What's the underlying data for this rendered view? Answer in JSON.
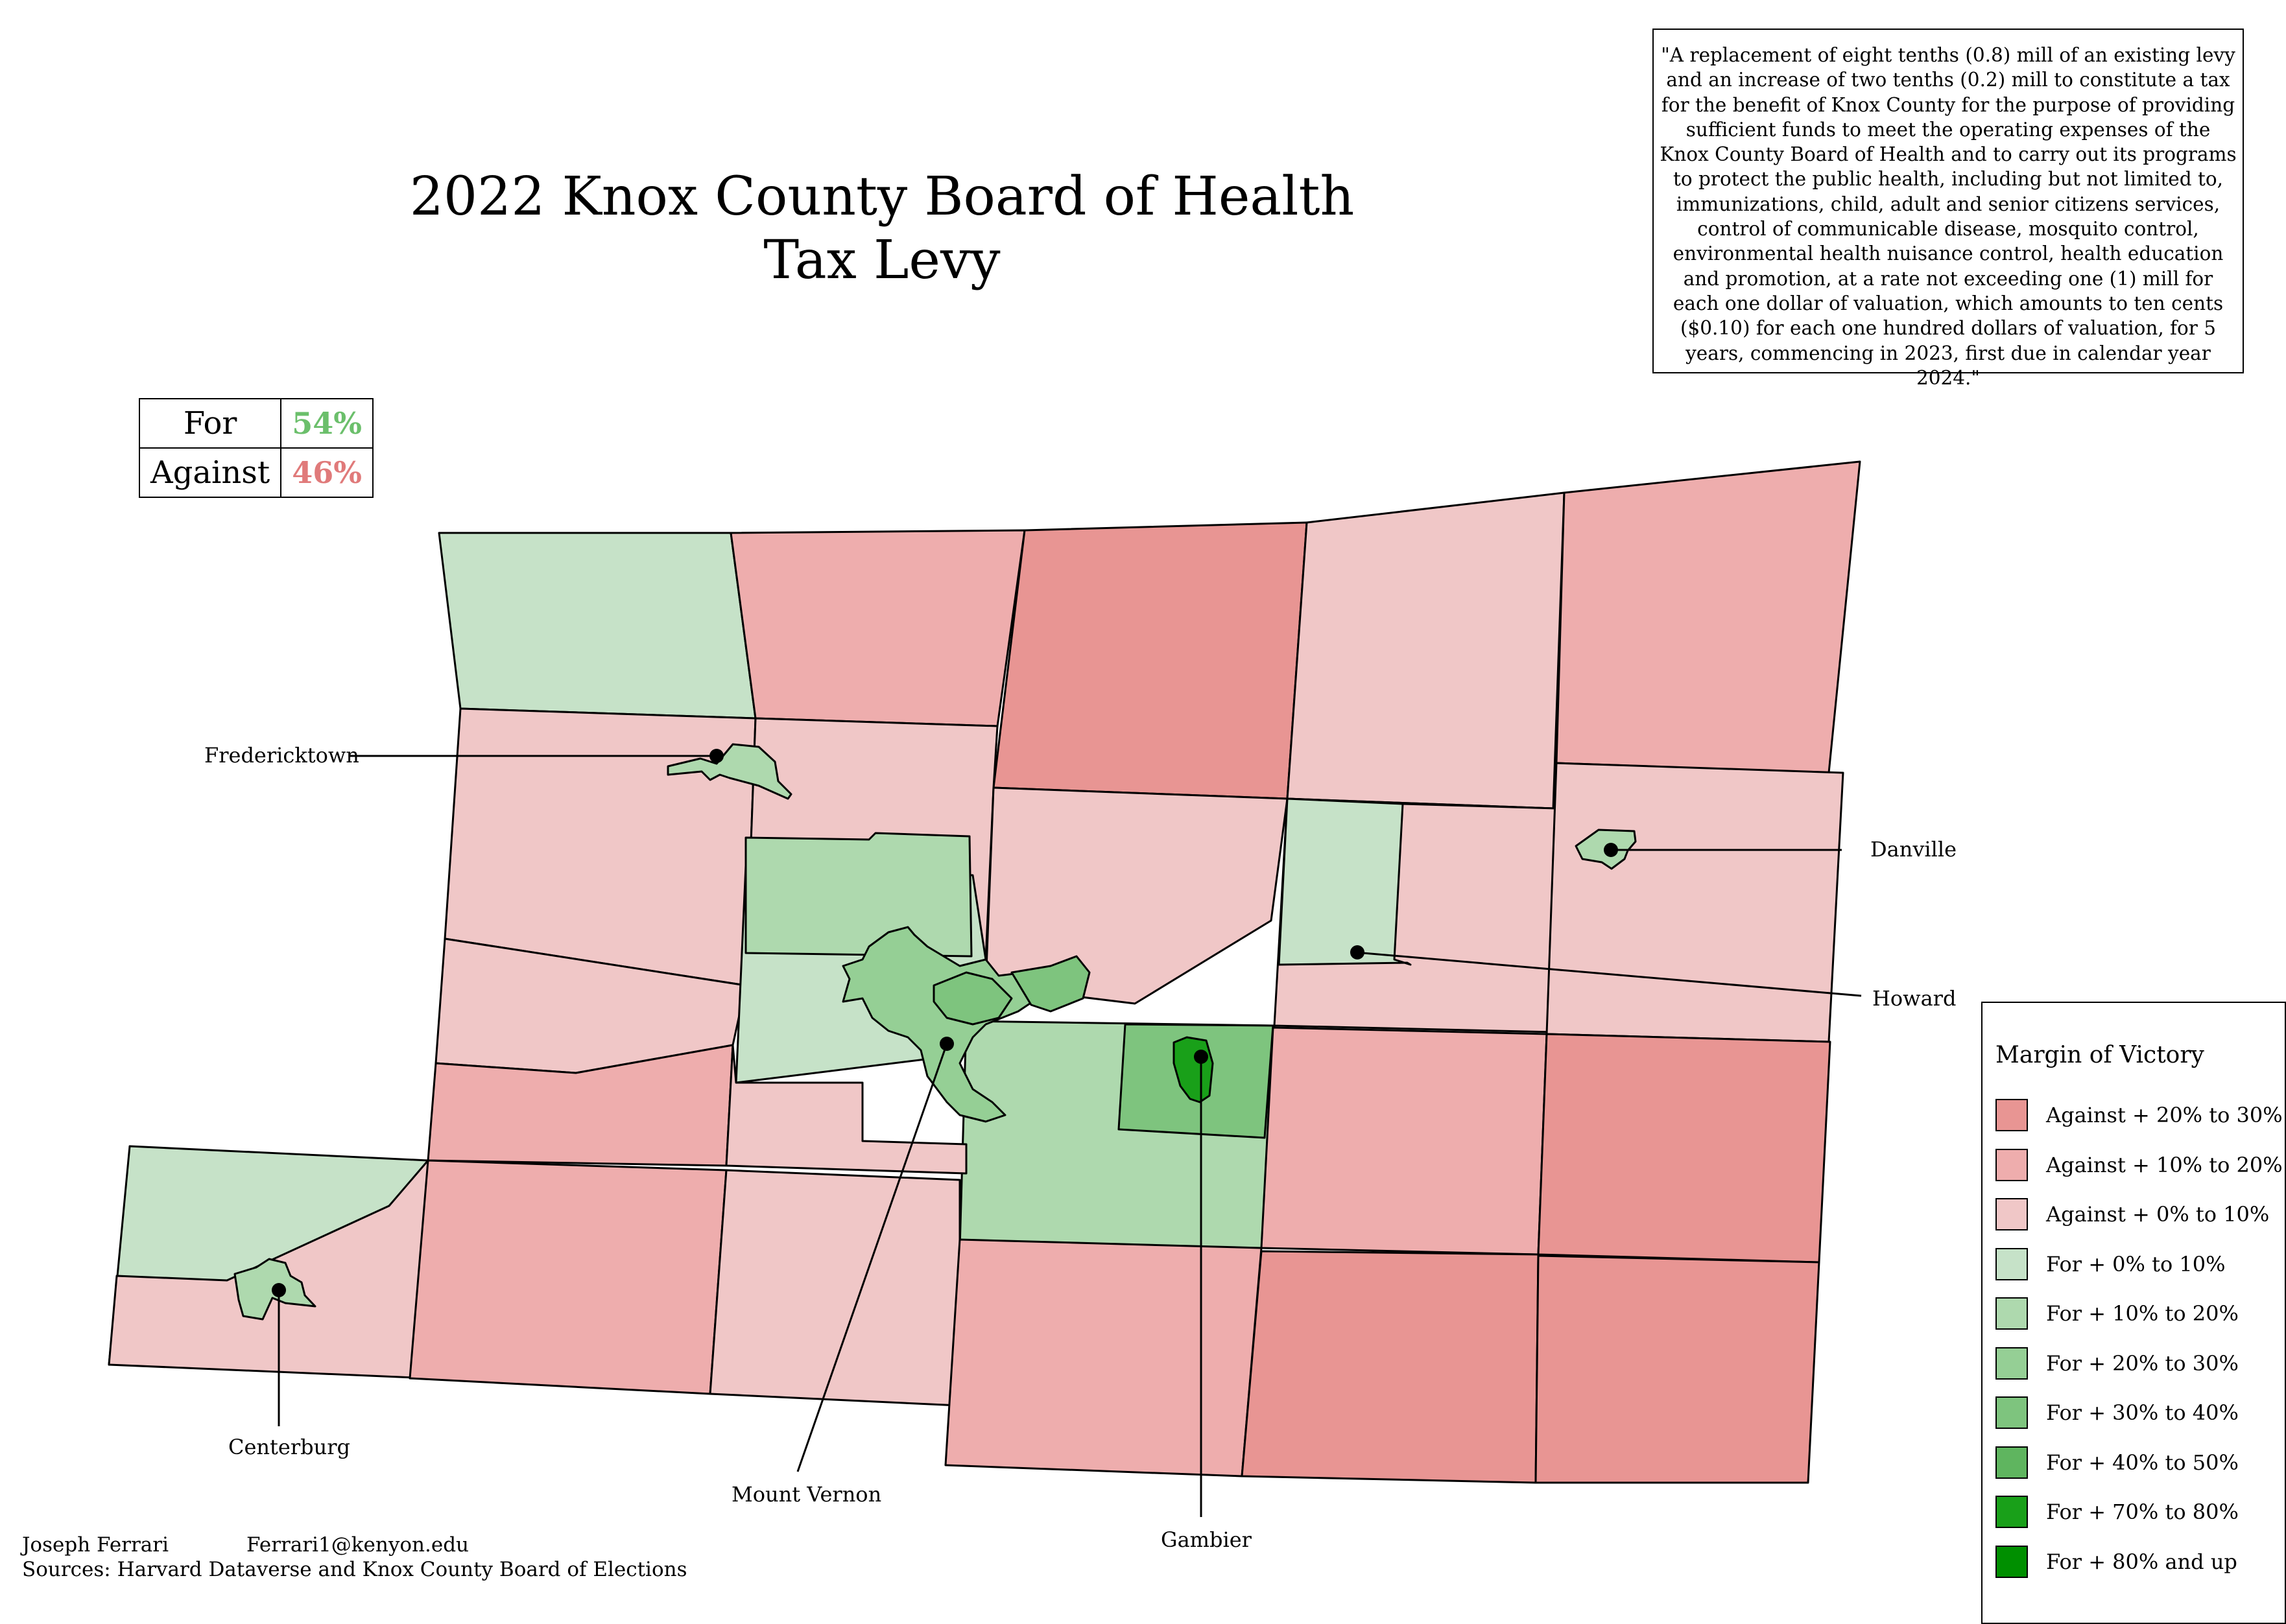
{
  "title_line1": "2022 Knox County Board of Health",
  "title_line2": "Tax Levy",
  "ballot_text": "\"A replacement of eight tenths (0.8) mill of an existing levy and an increase of two tenths (0.2) mill to constitute a tax for the benefit of Knox County for the purpose of providing sufficient funds to meet the operating expenses of the Knox County Board of Health and to carry out its programs to protect the public health, including but not limited to, immunizations, child, adult and senior citizens services, control of communicable disease, mosquito control, environmental health nuisance control, health education and promotion, at a rate not exceeding one (1) mill for each one dollar of valuation, which amounts to ten cents ($0.10) for each one hundred dollars of valuation, for 5 years, commencing in 2023, first due in calendar year 2024.\"",
  "results": {
    "for_label": "For",
    "for_pct": "54%",
    "for_color": "#6bbf6b",
    "against_label": "Against",
    "against_pct": "46%",
    "against_color": "#e07a7a"
  },
  "legend": {
    "title": "Margin of Victory",
    "items": [
      {
        "label": "Against + 20% to 30%",
        "color": "#e89593"
      },
      {
        "label": "Against + 10% to 20%",
        "color": "#eeadad"
      },
      {
        "label": "Against + 0% to 10%",
        "color": "#f0c7c7"
      },
      {
        "label": "For + 0% to 10%",
        "color": "#c6e2c8"
      },
      {
        "label": "For + 10% to 20%",
        "color": "#aed9ae"
      },
      {
        "label": "For + 20% to 30%",
        "color": "#95cf95"
      },
      {
        "label": "For + 30% to 40%",
        "color": "#7ec47e"
      },
      {
        "label": "For + 40% to 50%",
        "color": "#5fb55f"
      },
      {
        "label": "For + 70% to 80%",
        "color": "#19a019"
      },
      {
        "label": "For + 80% and up",
        "color": "#008f00"
      }
    ]
  },
  "places": {
    "fredericktown": "Fredericktown",
    "danville": "Danville",
    "howard": "Howard",
    "centerburg": "Centerburg",
    "mount_vernon": "Mount Vernon",
    "gambier": "Gambier"
  },
  "credits": {
    "author": "Joseph Ferrari",
    "email": "Ferrari1@kenyon.edu",
    "sources": "Sources: Harvard Dataverse and Knox County Board of Elections"
  }
}
